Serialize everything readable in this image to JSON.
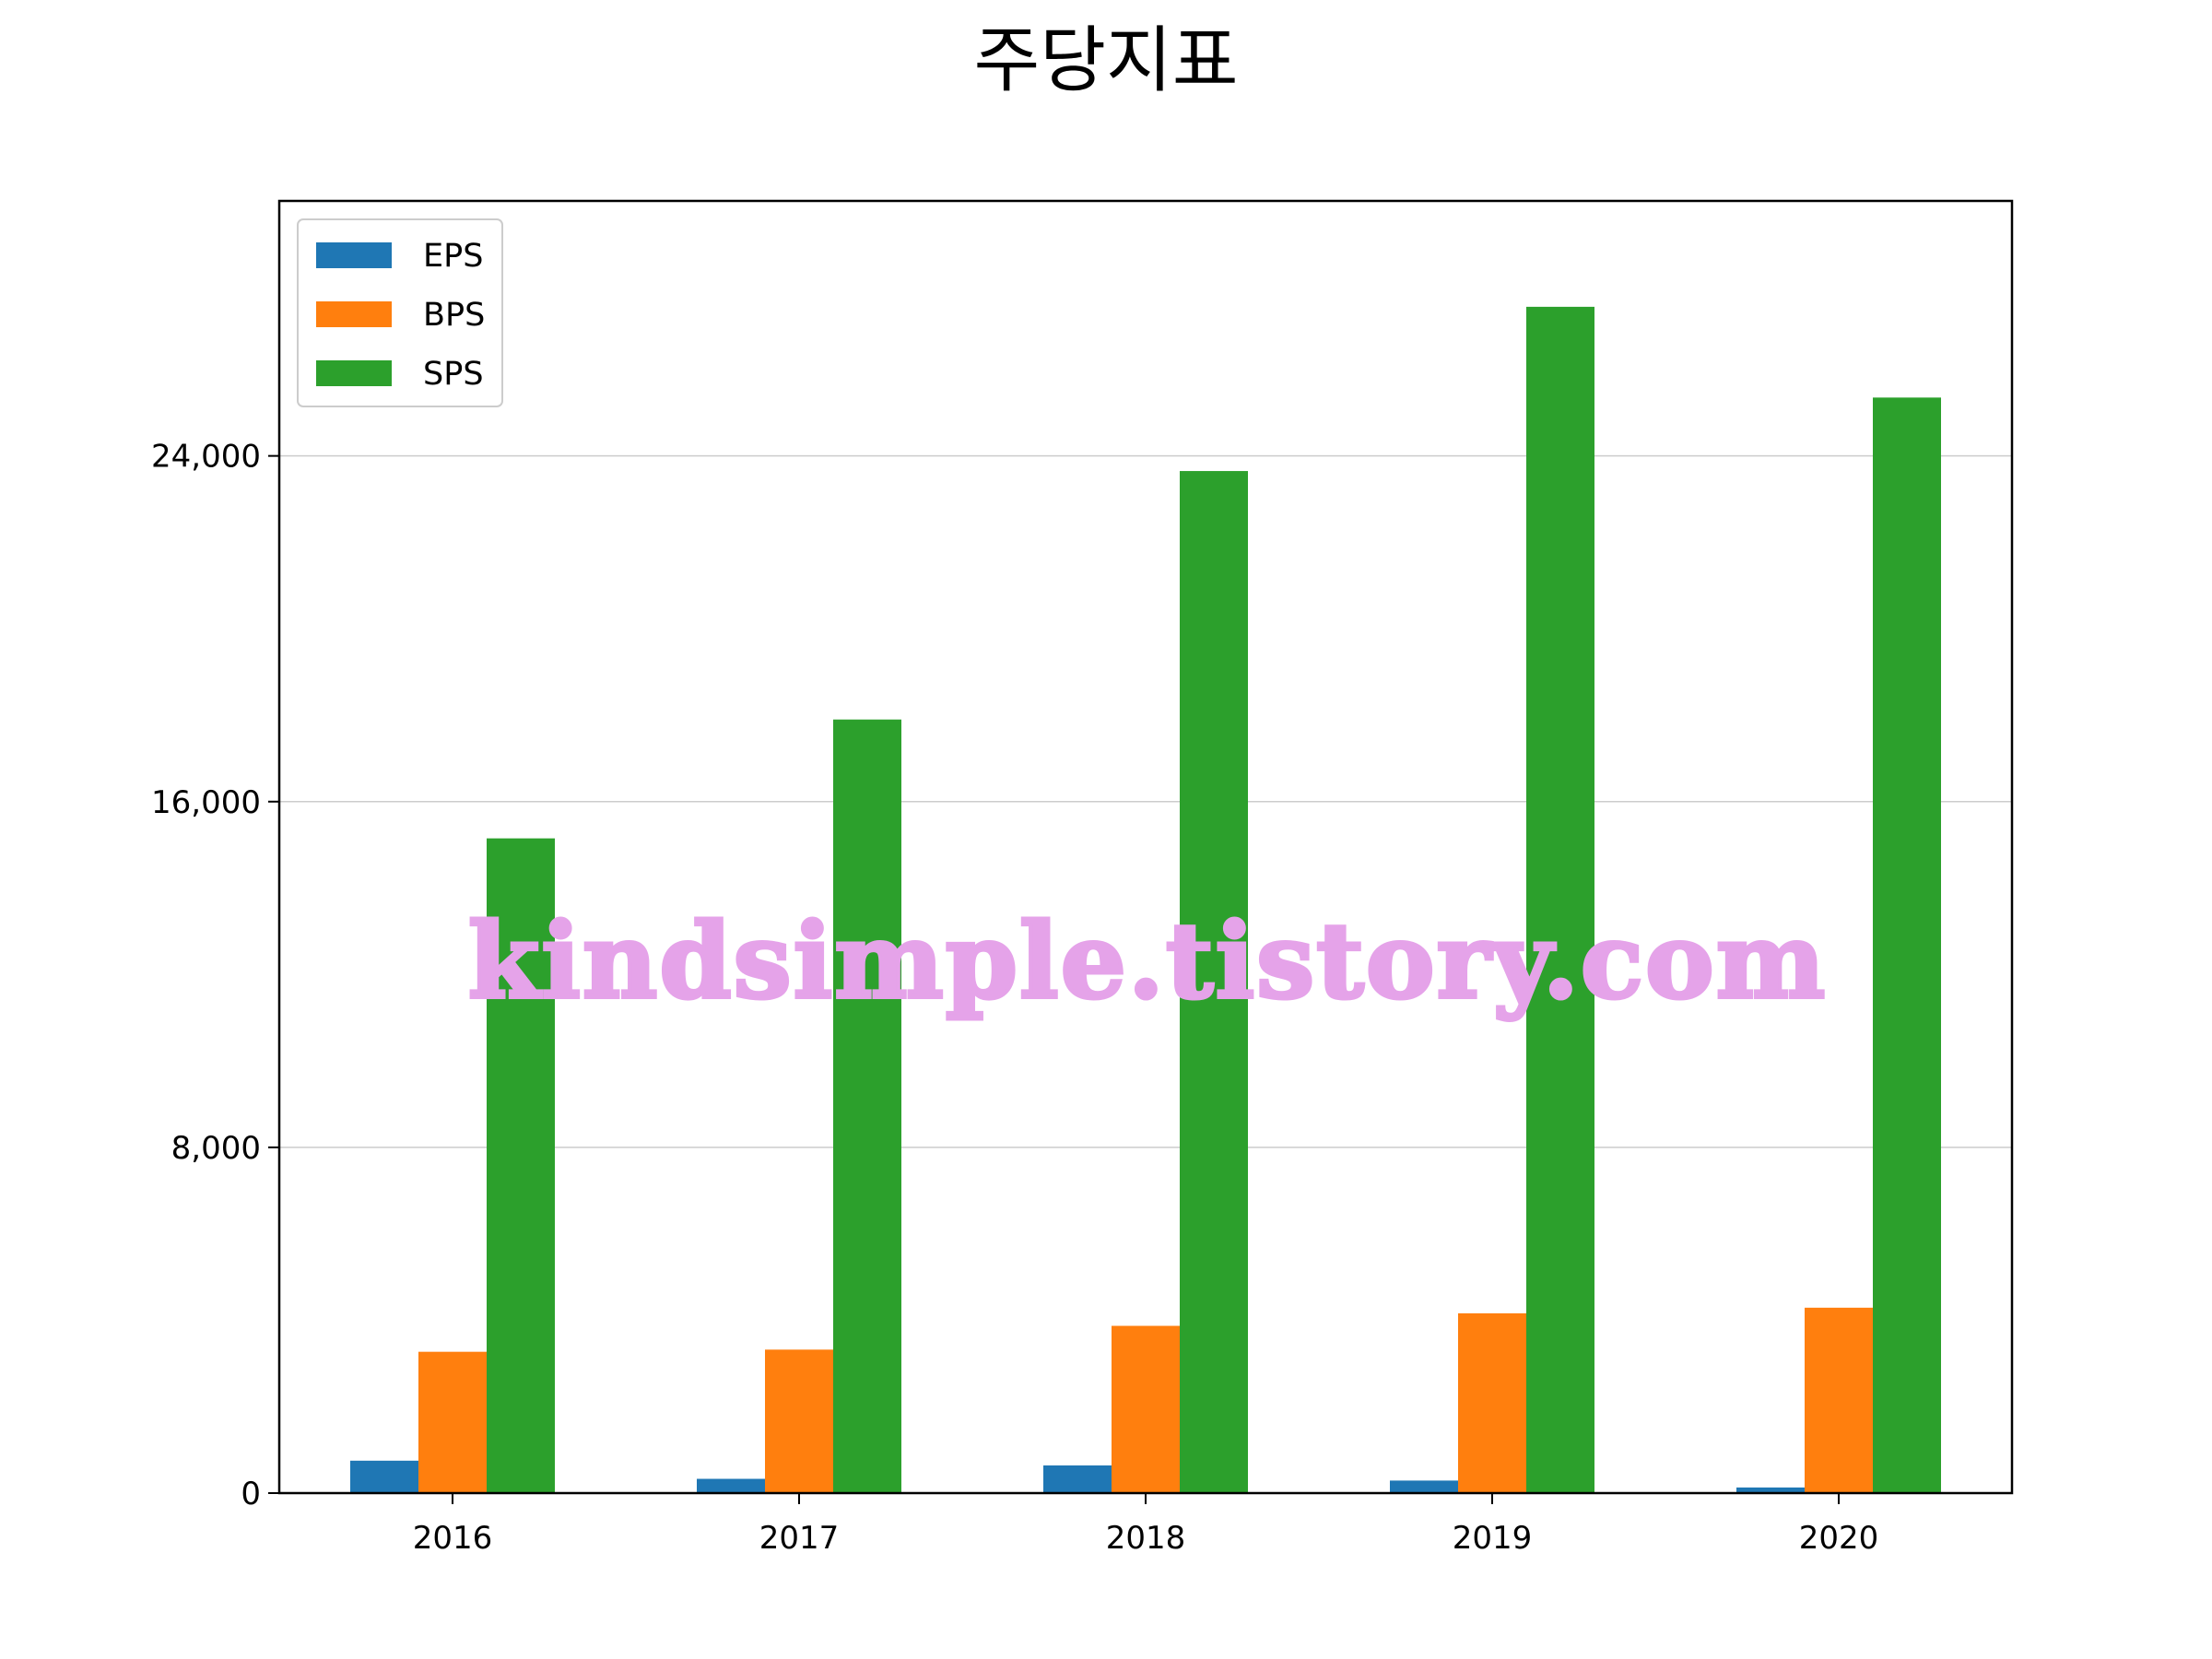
{
  "chart_data": {
    "type": "bar",
    "title": "주당지표",
    "categories": [
      "2016",
      "2017",
      "2018",
      "2019",
      "2020"
    ],
    "series": [
      {
        "name": "EPS",
        "color": "#1f77b4",
        "values": [
          750,
          330,
          640,
          290,
          130
        ]
      },
      {
        "name": "BPS",
        "color": "#ff7f0e",
        "values": [
          3270,
          3320,
          3870,
          4160,
          4290
        ]
      },
      {
        "name": "SPS",
        "color": "#2ca02c",
        "values": [
          15150,
          17900,
          23650,
          27450,
          25350
        ]
      }
    ],
    "yticks": [
      0,
      8000,
      16000,
      24000
    ],
    "ytick_labels": [
      "0",
      "8,000",
      "16,000",
      "24,000"
    ],
    "ylim": [
      0,
      29900
    ],
    "grid": "y",
    "legend_position": "top-left"
  },
  "watermark": "kindsimple.tistory.com"
}
